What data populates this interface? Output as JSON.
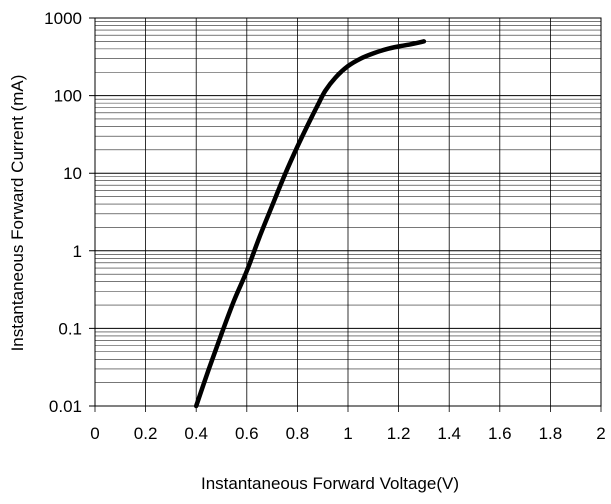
{
  "chart_data": {
    "type": "line",
    "title": "",
    "xlabel": "Instantaneous Forward Voltage(V)",
    "ylabel": "Instantaneous Forward Current (mA)",
    "xlim": [
      0,
      2
    ],
    "ylim": [
      0.01,
      1000
    ],
    "yscale": "log",
    "xticks": [
      "0",
      "0.2",
      "0.4",
      "0.6",
      "0.8",
      "1",
      "1.2",
      "1.4",
      "1.6",
      "1.8",
      "2"
    ],
    "yticks": [
      "0.01",
      "0.1",
      "1",
      "10",
      "100",
      "1000"
    ],
    "grid": true,
    "legend": "none",
    "line_color": "#000000",
    "series": [
      {
        "x": [
          0.4,
          0.45,
          0.5,
          0.55,
          0.6,
          0.65,
          0.7,
          0.75,
          0.8,
          0.85,
          0.88,
          0.91,
          0.95,
          1.0,
          1.05,
          1.1,
          1.15,
          1.2,
          1.25,
          1.3
        ],
        "y": [
          0.01,
          0.03,
          0.085,
          0.23,
          0.55,
          1.5,
          3.8,
          9.5,
          22,
          48,
          75,
          115,
          170,
          240,
          300,
          350,
          395,
          430,
          460,
          500
        ]
      }
    ]
  }
}
